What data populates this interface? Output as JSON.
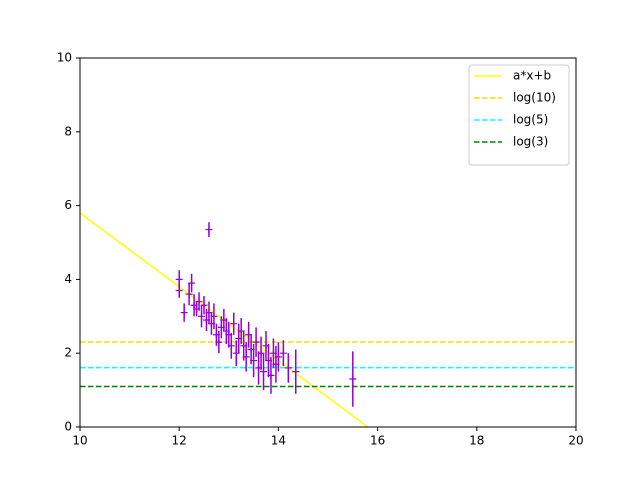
{
  "chart_data": {
    "type": "scatter",
    "xlim": [
      10,
      20
    ],
    "ylim": [
      0,
      10
    ],
    "xticks": [
      10,
      12,
      14,
      16,
      18,
      20
    ],
    "yticks": [
      0,
      2,
      4,
      6,
      8,
      10
    ],
    "legend": "upper right",
    "points": {
      "color": "#9400d3",
      "x": [
        12.0,
        12.0,
        12.1,
        12.2,
        12.25,
        12.3,
        12.35,
        12.4,
        12.45,
        12.5,
        12.55,
        12.6,
        12.6,
        12.65,
        12.7,
        12.75,
        12.8,
        12.85,
        12.9,
        12.95,
        13.0,
        13.05,
        13.1,
        13.15,
        13.2,
        13.25,
        13.3,
        13.35,
        13.4,
        13.45,
        13.5,
        13.55,
        13.6,
        13.65,
        13.7,
        13.75,
        13.8,
        13.85,
        13.9,
        13.95,
        14.0,
        14.1,
        14.2,
        14.35,
        15.5
      ],
      "values": [
        4.0,
        3.7,
        3.1,
        3.6,
        3.9,
        3.3,
        3.2,
        3.4,
        3.0,
        3.3,
        2.9,
        3.1,
        5.35,
        2.8,
        3.0,
        2.5,
        2.3,
        2.7,
        2.9,
        2.6,
        2.5,
        2.2,
        2.8,
        2.0,
        2.4,
        2.6,
        2.2,
        1.9,
        2.5,
        2.1,
        1.8,
        2.3,
        1.6,
        2.0,
        1.5,
        2.2,
        1.8,
        1.4,
        2.0,
        1.7,
        1.9,
        2.0,
        1.6,
        1.5,
        1.3
      ],
      "errors": [
        0.25,
        0.2,
        0.25,
        0.3,
        0.25,
        0.3,
        0.2,
        0.25,
        0.3,
        0.25,
        0.3,
        0.3,
        0.2,
        0.3,
        0.35,
        0.3,
        0.3,
        0.3,
        0.3,
        0.35,
        0.35,
        0.35,
        0.3,
        0.35,
        0.4,
        0.35,
        0.4,
        0.4,
        0.35,
        0.4,
        0.45,
        0.4,
        0.45,
        0.45,
        0.5,
        0.4,
        0.45,
        0.5,
        0.4,
        0.5,
        0.4,
        0.35,
        0.4,
        0.6,
        0.75
      ]
    },
    "fit": {
      "name": "a*x+b",
      "color": "#ffff00",
      "x": [
        10,
        15.8
      ],
      "values": [
        5.8,
        0
      ]
    },
    "hlines": [
      {
        "name": "log(10)",
        "color": "#ffd700",
        "value": 2.303
      },
      {
        "name": "log(5)",
        "color": "#00ffff",
        "value": 1.609
      },
      {
        "name": "log(3)",
        "color": "#008000",
        "value": 1.099
      }
    ]
  }
}
